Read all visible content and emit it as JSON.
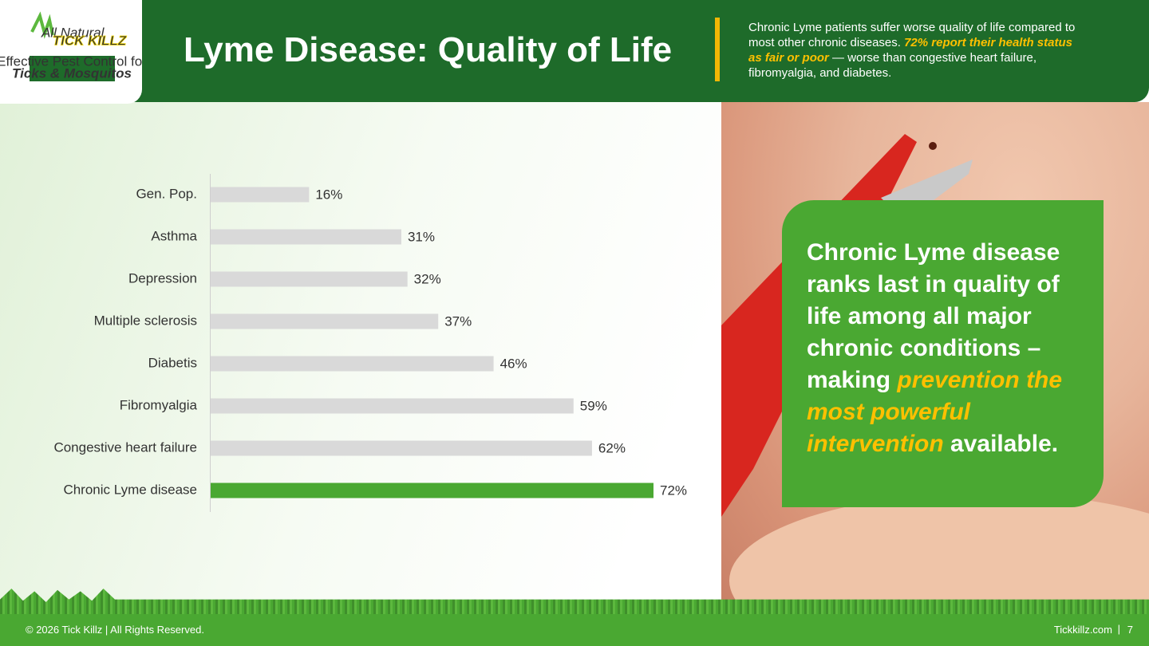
{
  "logo": {
    "tag": "All Natural",
    "brand": "TICK KILLZ",
    "tagline": "Effective Pest Control for",
    "product": "Ticks & Mosquitos"
  },
  "header": {
    "title": "Lyme Disease: Quality of Life",
    "note": {
      "before": "Chronic Lyme patients suffer worse quality of life compared to most other chronic diseases. ",
      "emphasis": "72% report their health status as fair or poor",
      "after": " — worse than congestive heart failure, fibromyalgia, and diabetes."
    }
  },
  "chart_data": {
    "type": "bar",
    "orientation": "horizontal",
    "categories": [
      "Gen. Pop.",
      "Asthma",
      "Depression",
      "Multiple sclerosis",
      "Diabetis",
      "Fibromyalgia",
      "Congestive heart failure",
      "Chronic Lyme disease"
    ],
    "values": [
      16,
      31,
      32,
      37,
      46,
      59,
      62,
      72
    ],
    "value_labels": [
      "16%",
      "31%",
      "32%",
      "37%",
      "46%",
      "59%",
      "62%",
      "72%"
    ],
    "colors": [
      "#d9d9d9",
      "#d9d9d9",
      "#d9d9d9",
      "#d9d9d9",
      "#d9d9d9",
      "#d9d9d9",
      "#d9d9d9",
      "#4aa832"
    ]
  },
  "callout": {
    "before": "Chronic Lyme disease ranks last in quality of life among all major chronic conditions – making ",
    "emphasis": "prevention the most powerful intervention",
    "after": " available."
  },
  "footer": {
    "left": "© 2026 Tick Killz  |  All Rights Reserved.",
    "site": "Tickkillz.com",
    "page": "7"
  }
}
